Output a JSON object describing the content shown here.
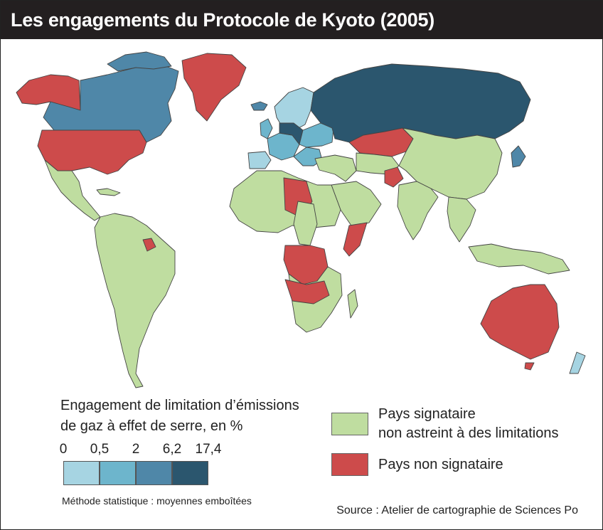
{
  "title": "Les engagements du Protocole de Kyoto (2005)",
  "colors": {
    "ocean": "#ffffff",
    "border": "#444444",
    "scale": [
      "#a6d4e2",
      "#6db5cc",
      "#4f87a8",
      "#2b566e"
    ],
    "signatory": "#bfdda0",
    "non_signatory": "#cd4b4b"
  },
  "legend": {
    "title_line1": "Engagement de limitation d’émissions",
    "title_line2": "de gaz à effet de serre, en %",
    "breaks": [
      "0",
      "0,5",
      "2",
      "6,2",
      "17,4"
    ],
    "method": "Méthode statistique : moyennes emboîtées",
    "signatory_line1": "Pays signataire",
    "signatory_line2": "non astreint à des limitations",
    "non_signatory": "Pays non signataire"
  },
  "source": "Source : Atelier de cartographie de Sciences Po",
  "regions": [
    {
      "name": "Canada",
      "category": "class-3"
    },
    {
      "name": "Greenland",
      "category": "non-signatory"
    },
    {
      "name": "United States",
      "category": "non-signatory"
    },
    {
      "name": "Alaska",
      "category": "non-signatory"
    },
    {
      "name": "Mexico and Central America",
      "category": "signatory"
    },
    {
      "name": "South America",
      "category": "signatory"
    },
    {
      "name": "Suriname / Guyana",
      "category": "non-signatory"
    },
    {
      "name": "Iceland",
      "category": "class-3"
    },
    {
      "name": "Scandinavia",
      "category": "class-1"
    },
    {
      "name": "Western Europe",
      "category": "class-2"
    },
    {
      "name": "Central Europe",
      "category": "class-4"
    },
    {
      "name": "Iberia",
      "category": "class-1"
    },
    {
      "name": "Eastern Europe",
      "category": "class-2"
    },
    {
      "name": "Russia",
      "category": "class-4"
    },
    {
      "name": "Kazakhstan",
      "category": "non-signatory"
    },
    {
      "name": "Turkey and Near East",
      "category": "non-signatory"
    },
    {
      "name": "Central Asia",
      "category": "signatory"
    },
    {
      "name": "Afghanistan",
      "category": "non-signatory"
    },
    {
      "name": "China and Mongolia",
      "category": "signatory"
    },
    {
      "name": "India and South Asia",
      "category": "signatory"
    },
    {
      "name": "Arabian Peninsula",
      "category": "signatory"
    },
    {
      "name": "Southeast Asia",
      "category": "signatory"
    },
    {
      "name": "Japan",
      "category": "class-3"
    },
    {
      "name": "Indonesia and Papua",
      "category": "signatory"
    },
    {
      "name": "North Africa",
      "category": "signatory"
    },
    {
      "name": "Libya",
      "category": "non-signatory"
    },
    {
      "name": "Chad and Sudan corridor",
      "category": "non-signatory"
    },
    {
      "name": "Central Africa",
      "category": "non-signatory"
    },
    {
      "name": "Somalia",
      "category": "non-signatory"
    },
    {
      "name": "Southern Africa",
      "category": "signatory"
    },
    {
      "name": "Angola / Zambia",
      "category": "non-signatory"
    },
    {
      "name": "Madagascar",
      "category": "signatory"
    },
    {
      "name": "Australia",
      "category": "non-signatory"
    },
    {
      "name": "New Zealand",
      "category": "class-1"
    }
  ]
}
